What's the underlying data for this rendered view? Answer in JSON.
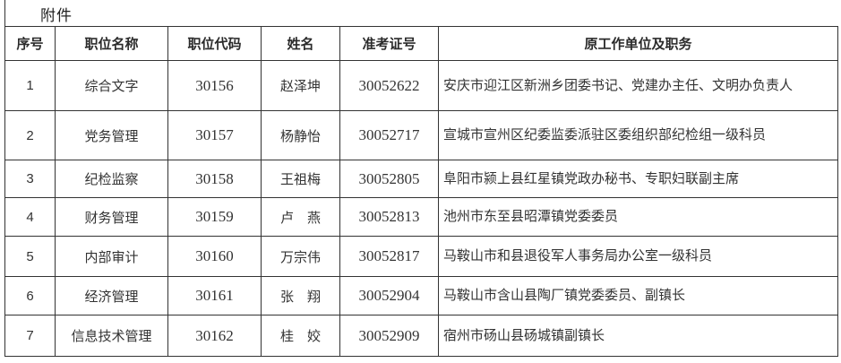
{
  "page": {
    "attachment_label": "附件"
  },
  "table": {
    "columns": [
      {
        "key": "index",
        "label": "序号"
      },
      {
        "key": "position",
        "label": "职位名称"
      },
      {
        "key": "code",
        "label": "职位代码"
      },
      {
        "key": "name",
        "label": "姓名"
      },
      {
        "key": "ticket",
        "label": "准考证号"
      },
      {
        "key": "unit",
        "label": "原工作单位及职务"
      }
    ],
    "rows": [
      [
        "1",
        "综合文字",
        "30156",
        "赵泽坤",
        "30052622",
        "安庆市迎江区新洲乡团委书记、党建办主任、文明办负责人"
      ],
      [
        "2",
        "党务管理",
        "30157",
        "杨静怡",
        "30052717",
        "宣城市宣州区纪委监委派驻区委组织部纪检组一级科员"
      ],
      [
        "3",
        "纪检监察",
        "30158",
        "王祖梅",
        "30052805",
        "阜阳市颍上县红星镇党政办秘书、专职妇联副主席"
      ],
      [
        "4",
        "财务管理",
        "30159",
        "卢　燕",
        "30052813",
        "池州市东至县昭潭镇党委委员"
      ],
      [
        "5",
        "内部审计",
        "30160",
        "万宗伟",
        "30052817",
        "马鞍山市和县退役军人事务局办公室一级科员"
      ],
      [
        "6",
        "经济管理",
        "30161",
        "张　翔",
        "30052904",
        "马鞍山市含山县陶厂镇党委委员、副镇长"
      ],
      [
        "7",
        "信息技术管理",
        "30162",
        "桂　姣",
        "30052909",
        "宿州市砀山县砀城镇副镇长"
      ]
    ]
  }
}
